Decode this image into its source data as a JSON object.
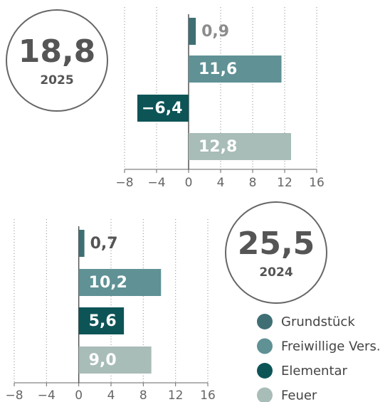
{
  "chart_data": [
    {
      "type": "bar",
      "orientation": "horizontal",
      "values": [
        0.9,
        11.6,
        -6.4,
        12.8
      ],
      "value_labels": [
        "0,9",
        "11,6",
        "−6,4",
        "12,8"
      ],
      "xlim": [
        -8,
        16
      ],
      "xticks": [
        {
          "value": -8,
          "label": "−8"
        },
        {
          "value": -4,
          "label": "−4"
        },
        0,
        4,
        8,
        12,
        16
      ],
      "grid": true,
      "total": "18,8",
      "year": "2025"
    },
    {
      "type": "bar",
      "orientation": "horizontal",
      "values": [
        0.7,
        10.2,
        5.6,
        9.0
      ],
      "value_labels": [
        "0,7",
        "10,2",
        "5,6",
        "9,0"
      ],
      "xlim": [
        -8,
        16
      ],
      "xticks": [
        {
          "value": -8,
          "label": "−8"
        },
        {
          "value": -4,
          "label": "−4"
        },
        0,
        4,
        8,
        12,
        16
      ],
      "grid": true,
      "total": "25,5",
      "year": "2024"
    }
  ],
  "legend": {
    "names": [
      "Grundstück",
      "Freiwillige Vers.",
      "Elementar",
      "Feuer"
    ],
    "colors": [
      "#3f6f74",
      "#5f9195",
      "#0d5457",
      "#a8bcb8"
    ]
  }
}
